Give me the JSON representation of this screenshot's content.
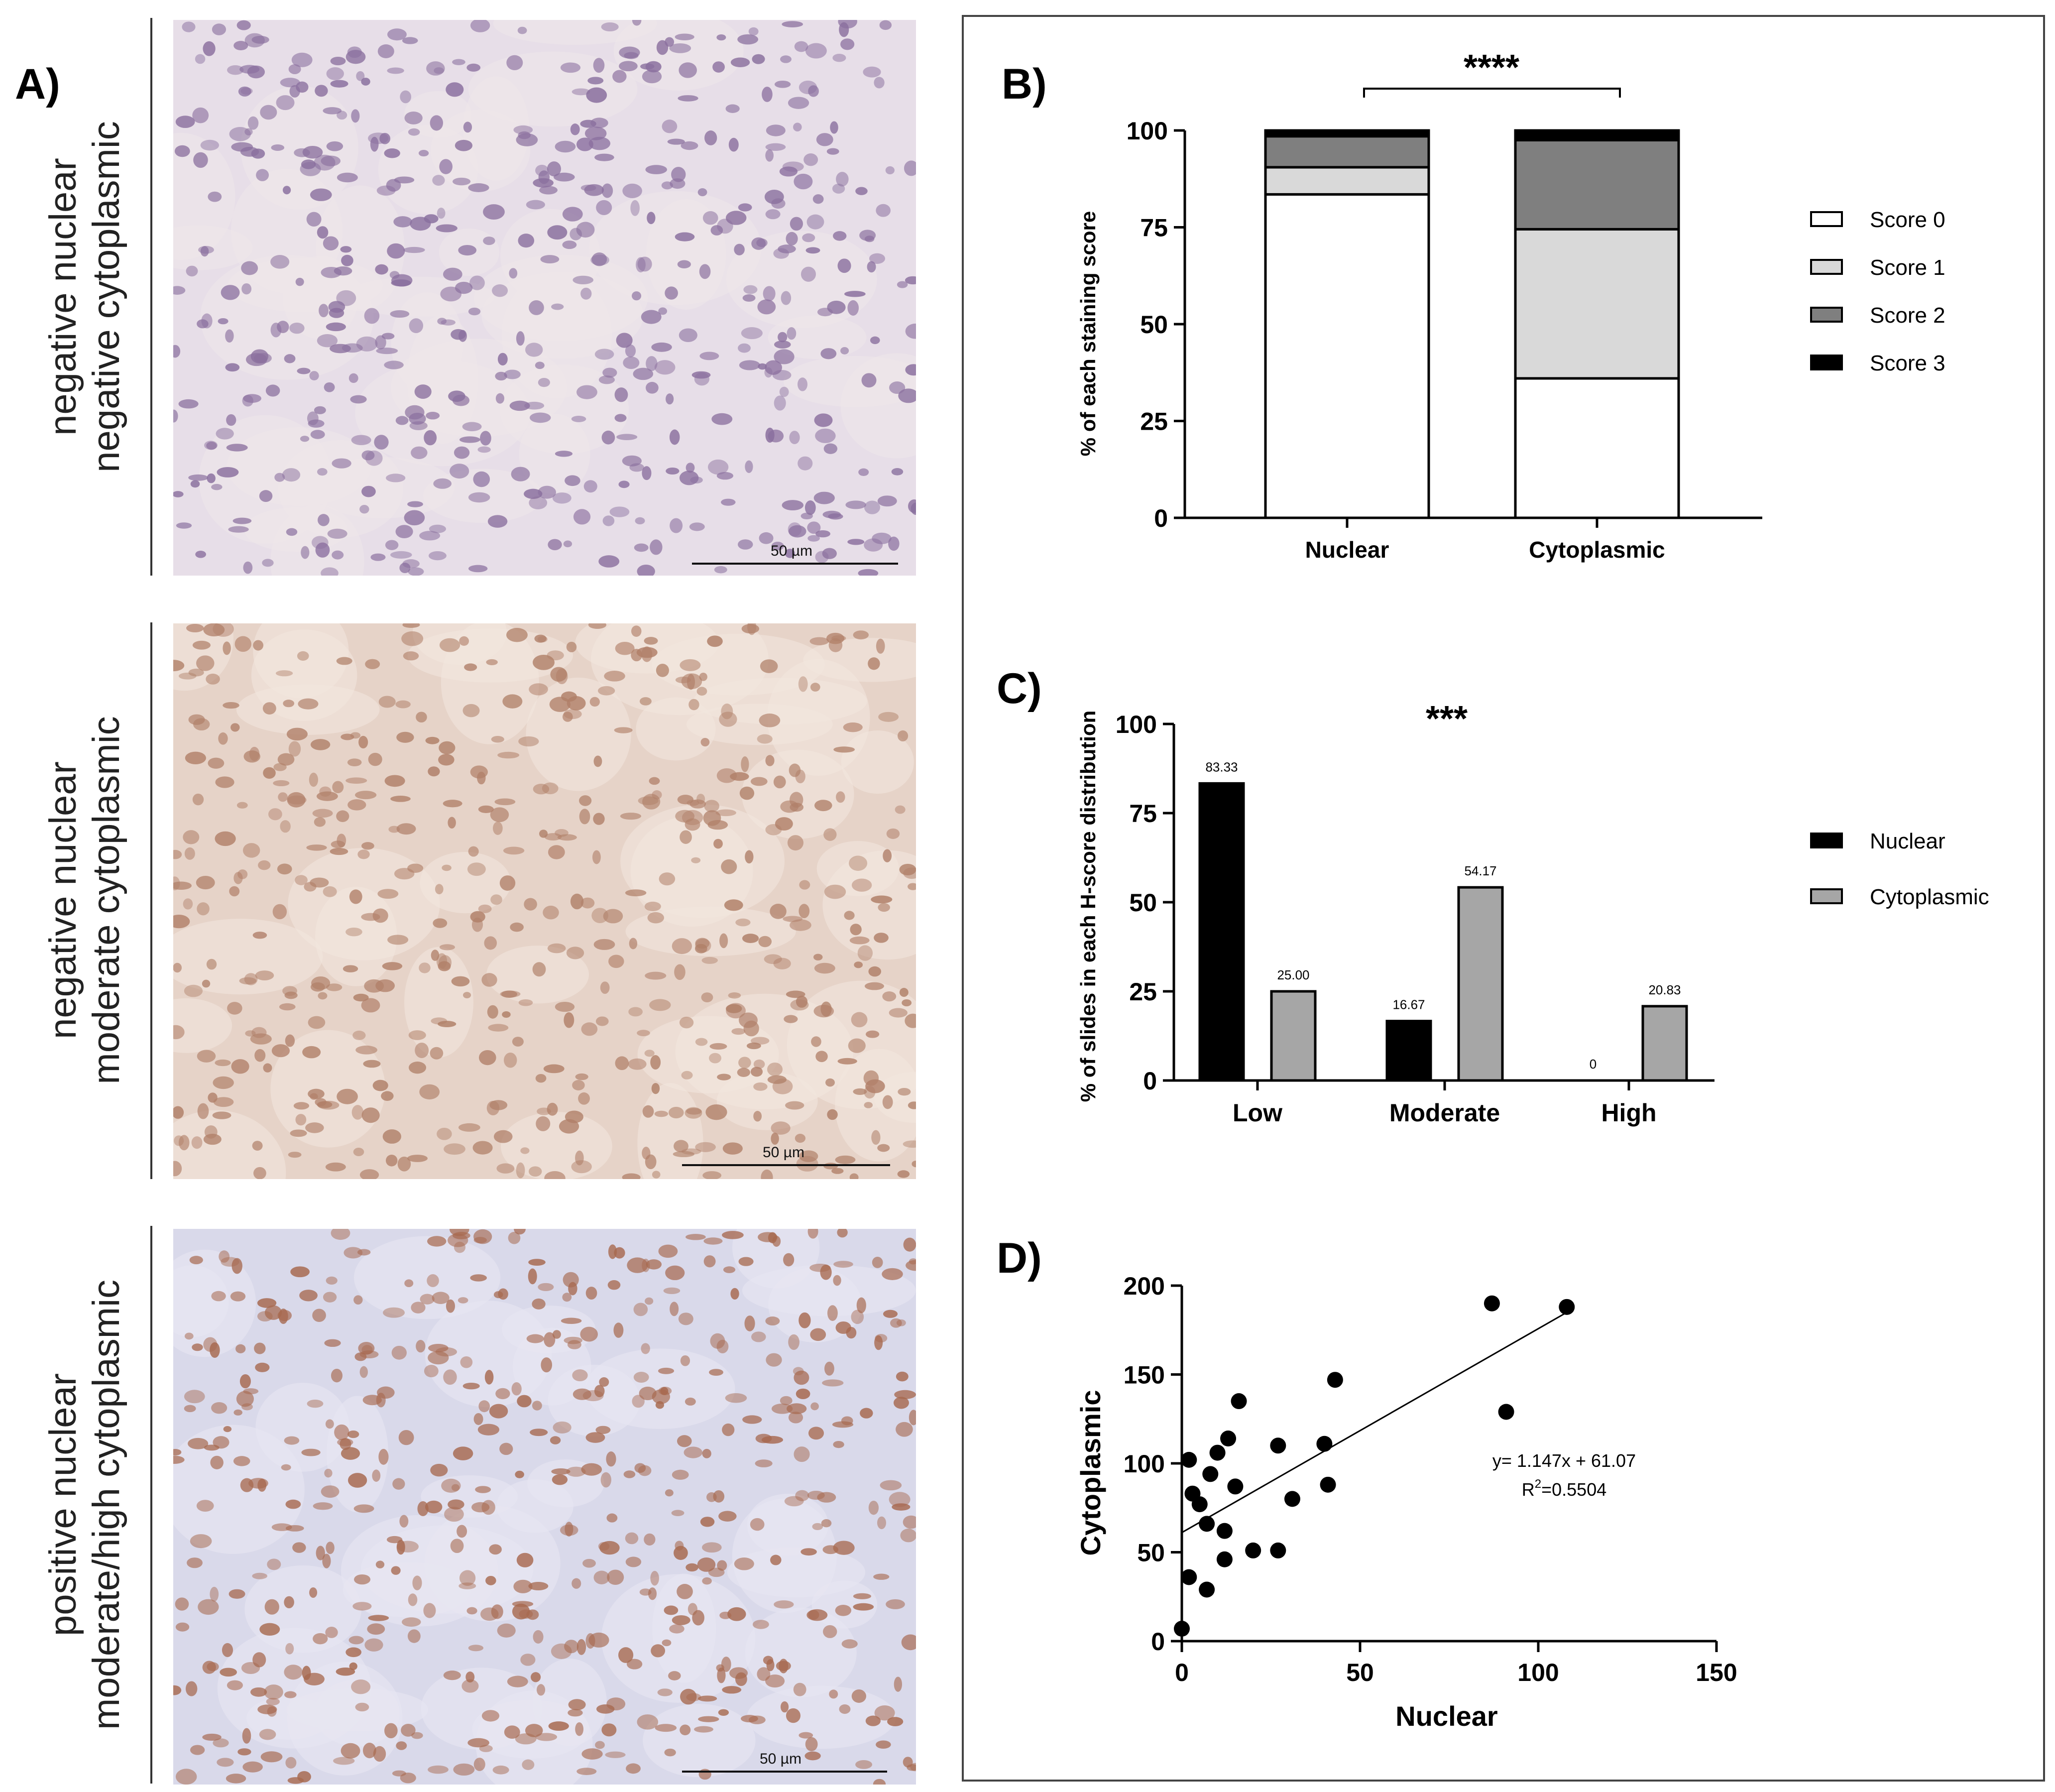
{
  "panels": {
    "a_label": "A)",
    "b_label": "B)",
    "c_label": "C)",
    "d_label": "D)"
  },
  "micrographs": [
    {
      "line1": "negative nuclear",
      "line2": "negative cytoplasmic",
      "scale": "50 µm",
      "colors": {
        "bg": "#e7dee8",
        "cell": "#8a6f9e",
        "stroma": "#efe6ea"
      }
    },
    {
      "line1": "negative nuclear",
      "line2": "moderate cytoplasmic",
      "scale": "50 µm",
      "colors": {
        "bg": "#e6d3c8",
        "cell": "#b07f68",
        "stroma": "#f1e6de"
      }
    },
    {
      "line1": "positive nuclear",
      "line2": "moderate/high cytoplasmic",
      "scale": "50 µm",
      "colors": {
        "bg": "#d9d9ea",
        "cell": "#a7694f",
        "stroma": "#e8e6f1"
      }
    }
  ],
  "chart_data": [
    {
      "type": "bar",
      "stacked": true,
      "categories": [
        "Nuclear",
        "Cytoplasmic"
      ],
      "series": [
        {
          "name": "Score 0",
          "values": [
            83.5,
            36
          ],
          "color": "#ffffff"
        },
        {
          "name": "Score 1",
          "values": [
            7,
            38.5
          ],
          "color": "#d9d9d9"
        },
        {
          "name": "Score 2",
          "values": [
            8,
            23
          ],
          "color": "#7f7f7f"
        },
        {
          "name": "Score 3",
          "values": [
            1.5,
            2.5
          ],
          "color": "#000000"
        }
      ],
      "ylabel": "% of each staining score",
      "ylim": [
        0,
        100
      ],
      "yticks": [
        "0",
        "25",
        "50",
        "75",
        "100"
      ],
      "significance": "****",
      "legend": "right"
    },
    {
      "type": "bar",
      "categories": [
        "Low",
        "Moderate",
        "High"
      ],
      "series": [
        {
          "name": "Nuclear",
          "values": [
            83.33,
            16.67,
            0
          ],
          "labels": [
            "83.33",
            "16.67",
            "0"
          ],
          "color": "#000000"
        },
        {
          "name": "Cytoplasmic",
          "values": [
            25.0,
            54.17,
            20.83
          ],
          "labels": [
            "25.00",
            "54.17",
            "20.83"
          ],
          "color": "#a6a6a6"
        }
      ],
      "ylabel": "% of slides in each H-score distribution",
      "ylim": [
        0,
        100
      ],
      "yticks": [
        "0",
        "25",
        "50",
        "75",
        "100"
      ],
      "significance": "***",
      "legend": "right"
    },
    {
      "type": "scatter",
      "xlabel": "Nuclear",
      "ylabel": "Cytoplasmic",
      "xlim": [
        0,
        150
      ],
      "ylim": [
        0,
        200
      ],
      "xticks": [
        "0",
        "50",
        "100",
        "150"
      ],
      "yticks": [
        "0",
        "50",
        "100",
        "150",
        "200"
      ],
      "points": [
        [
          0,
          7
        ],
        [
          2,
          36
        ],
        [
          2,
          102
        ],
        [
          3,
          83
        ],
        [
          5,
          77
        ],
        [
          7,
          66
        ],
        [
          7,
          29
        ],
        [
          8,
          94
        ],
        [
          10,
          106
        ],
        [
          12,
          62
        ],
        [
          12,
          46
        ],
        [
          13,
          114
        ],
        [
          15,
          87
        ],
        [
          16,
          135
        ],
        [
          20,
          51
        ],
        [
          27,
          110
        ],
        [
          27,
          51
        ],
        [
          31,
          80
        ],
        [
          40,
          111
        ],
        [
          41,
          88
        ],
        [
          43,
          147
        ],
        [
          87,
          190
        ],
        [
          91,
          129
        ],
        [
          108,
          188
        ]
      ],
      "fit": {
        "slope": 1.147,
        "intercept": 61.07,
        "x_range": [
          0,
          108
        ]
      },
      "equation": "y= 1.147x + 61.07",
      "r2_prefix": "R",
      "r2_exp": "2",
      "r2_value": "=0.5504"
    }
  ]
}
